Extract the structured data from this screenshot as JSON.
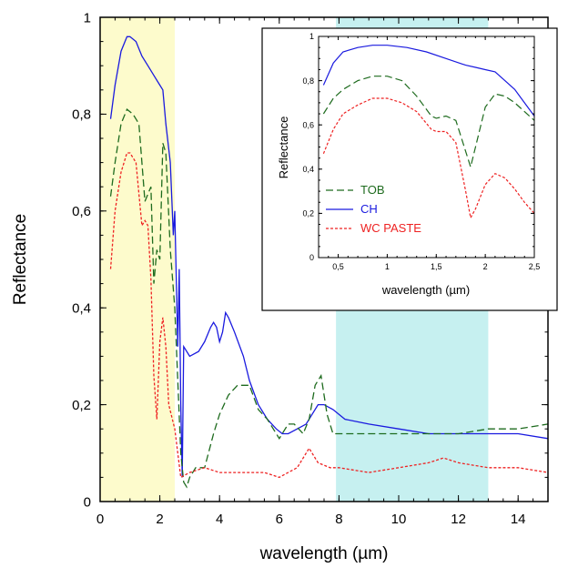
{
  "chart_data": [
    {
      "type": "line",
      "xlabel": "wavelength (µm)",
      "ylabel": "Reflectance",
      "xlim": [
        0,
        15
      ],
      "ylim": [
        0,
        1
      ],
      "x_ticks": [
        "0",
        "2",
        "4",
        "6",
        "8",
        "10",
        "12",
        "14"
      ],
      "y_ticks": [
        "0",
        "0,2",
        "0,4",
        "0,6",
        "0,8",
        "1"
      ],
      "shaded_regions": [
        {
          "x0": 0,
          "x1": 2.5,
          "color": "#fdfbcc"
        },
        {
          "x0": 7.9,
          "x1": 13.0,
          "color": "#c6f0f0"
        }
      ],
      "series": [
        {
          "name": "CH",
          "color": "#1a1adf",
          "dash": "solid",
          "x": [
            0.35,
            0.5,
            0.7,
            0.9,
            1.0,
            1.2,
            1.4,
            1.6,
            1.8,
            2.0,
            2.1,
            2.2,
            2.35,
            2.45,
            2.5,
            2.6,
            2.65,
            2.7,
            2.75,
            2.8,
            3.0,
            3.3,
            3.5,
            3.7,
            3.8,
            3.9,
            4.0,
            4.1,
            4.2,
            4.3,
            4.5,
            4.8,
            5.0,
            5.3,
            5.6,
            5.9,
            6.1,
            6.3,
            6.6,
            6.9,
            7.1,
            7.3,
            7.5,
            7.8,
            8.2,
            9.0,
            10.0,
            11.0,
            12.0,
            13.0,
            14.0,
            15.0
          ],
          "y": [
            0.79,
            0.86,
            0.93,
            0.96,
            0.96,
            0.95,
            0.92,
            0.9,
            0.88,
            0.86,
            0.85,
            0.78,
            0.7,
            0.55,
            0.6,
            0.32,
            0.48,
            0.2,
            0.05,
            0.32,
            0.3,
            0.31,
            0.33,
            0.36,
            0.37,
            0.36,
            0.33,
            0.35,
            0.39,
            0.38,
            0.35,
            0.3,
            0.25,
            0.2,
            0.17,
            0.15,
            0.14,
            0.14,
            0.15,
            0.16,
            0.18,
            0.2,
            0.2,
            0.19,
            0.17,
            0.16,
            0.15,
            0.14,
            0.14,
            0.14,
            0.14,
            0.13
          ]
        },
        {
          "name": "TOB",
          "color": "#1e6b1e",
          "dash": "dashed",
          "x": [
            0.35,
            0.5,
            0.7,
            0.9,
            1.1,
            1.3,
            1.5,
            1.7,
            1.8,
            1.9,
            2.0,
            2.1,
            2.2,
            2.35,
            2.5,
            2.7,
            2.8,
            2.9,
            3.0,
            3.2,
            3.5,
            3.8,
            4.0,
            4.3,
            4.6,
            5.0,
            5.3,
            5.6,
            6.0,
            6.3,
            6.5,
            6.8,
            7.0,
            7.2,
            7.4,
            7.6,
            7.8,
            8.0,
            9.0,
            10.0,
            11.0,
            12.0,
            13.0,
            14.0,
            15.0
          ],
          "y": [
            0.63,
            0.7,
            0.78,
            0.81,
            0.8,
            0.78,
            0.62,
            0.65,
            0.45,
            0.52,
            0.5,
            0.74,
            0.72,
            0.52,
            0.4,
            0.1,
            0.04,
            0.03,
            0.05,
            0.07,
            0.07,
            0.14,
            0.18,
            0.22,
            0.24,
            0.24,
            0.19,
            0.17,
            0.13,
            0.16,
            0.16,
            0.14,
            0.17,
            0.24,
            0.26,
            0.18,
            0.14,
            0.14,
            0.14,
            0.14,
            0.14,
            0.14,
            0.15,
            0.15,
            0.16
          ]
        },
        {
          "name": "WC PASTE",
          "color": "#ee2222",
          "dash": "dotted",
          "x": [
            0.35,
            0.5,
            0.7,
            0.9,
            1.0,
            1.2,
            1.4,
            1.5,
            1.6,
            1.7,
            1.8,
            1.9,
            2.0,
            2.1,
            2.2,
            2.3,
            2.5,
            2.7,
            3.0,
            3.5,
            4.0,
            5.0,
            5.5,
            6.0,
            6.3,
            6.6,
            7.0,
            7.3,
            7.7,
            8.0,
            9.0,
            10.0,
            11.0,
            11.5,
            12.0,
            13.0,
            14.0,
            15.0
          ],
          "y": [
            0.48,
            0.6,
            0.68,
            0.72,
            0.72,
            0.7,
            0.57,
            0.58,
            0.57,
            0.46,
            0.26,
            0.17,
            0.33,
            0.38,
            0.32,
            0.2,
            0.15,
            0.05,
            0.06,
            0.07,
            0.06,
            0.06,
            0.06,
            0.05,
            0.06,
            0.07,
            0.11,
            0.08,
            0.07,
            0.07,
            0.06,
            0.07,
            0.08,
            0.09,
            0.08,
            0.07,
            0.07,
            0.06
          ]
        }
      ]
    },
    {
      "type": "line",
      "inset": true,
      "xlabel": "wavelength (µm)",
      "ylabel": "Reflectance",
      "xlim": [
        0.3,
        2.5
      ],
      "ylim": [
        0,
        1
      ],
      "x_ticks": [
        "0,5",
        "1",
        "1,5",
        "2",
        "2,5"
      ],
      "y_ticks": [
        "0",
        "0,2",
        "0,4",
        "0,6",
        "0,8",
        "1"
      ],
      "legend": {
        "position": "middle-left",
        "entries": [
          "TOB",
          "CH",
          "WC PASTE"
        ]
      },
      "series": [
        {
          "name": "CH",
          "color": "#1a1adf",
          "dash": "solid",
          "x": [
            0.35,
            0.45,
            0.55,
            0.7,
            0.85,
            1.0,
            1.2,
            1.4,
            1.6,
            1.8,
            1.9,
            2.0,
            2.1,
            2.2,
            2.3,
            2.4,
            2.5
          ],
          "y": [
            0.78,
            0.88,
            0.93,
            0.95,
            0.96,
            0.96,
            0.95,
            0.93,
            0.9,
            0.87,
            0.86,
            0.85,
            0.84,
            0.8,
            0.76,
            0.7,
            0.64
          ]
        },
        {
          "name": "TOB",
          "color": "#1e6b1e",
          "dash": "dashed",
          "x": [
            0.35,
            0.45,
            0.55,
            0.7,
            0.85,
            1.0,
            1.15,
            1.3,
            1.45,
            1.5,
            1.6,
            1.7,
            1.8,
            1.85,
            1.9,
            2.0,
            2.1,
            2.2,
            2.3,
            2.4,
            2.5
          ],
          "y": [
            0.65,
            0.72,
            0.76,
            0.8,
            0.82,
            0.82,
            0.8,
            0.73,
            0.64,
            0.63,
            0.64,
            0.62,
            0.48,
            0.41,
            0.5,
            0.68,
            0.74,
            0.73,
            0.7,
            0.66,
            0.62
          ]
        },
        {
          "name": "WC PASTE",
          "color": "#ee2222",
          "dash": "dotted",
          "x": [
            0.35,
            0.45,
            0.55,
            0.7,
            0.85,
            1.0,
            1.15,
            1.3,
            1.45,
            1.5,
            1.6,
            1.7,
            1.8,
            1.85,
            1.9,
            2.0,
            2.1,
            2.2,
            2.3,
            2.4,
            2.5
          ],
          "y": [
            0.47,
            0.58,
            0.65,
            0.69,
            0.72,
            0.72,
            0.7,
            0.66,
            0.58,
            0.57,
            0.57,
            0.52,
            0.3,
            0.18,
            0.22,
            0.33,
            0.38,
            0.36,
            0.31,
            0.25,
            0.2
          ]
        }
      ]
    }
  ]
}
